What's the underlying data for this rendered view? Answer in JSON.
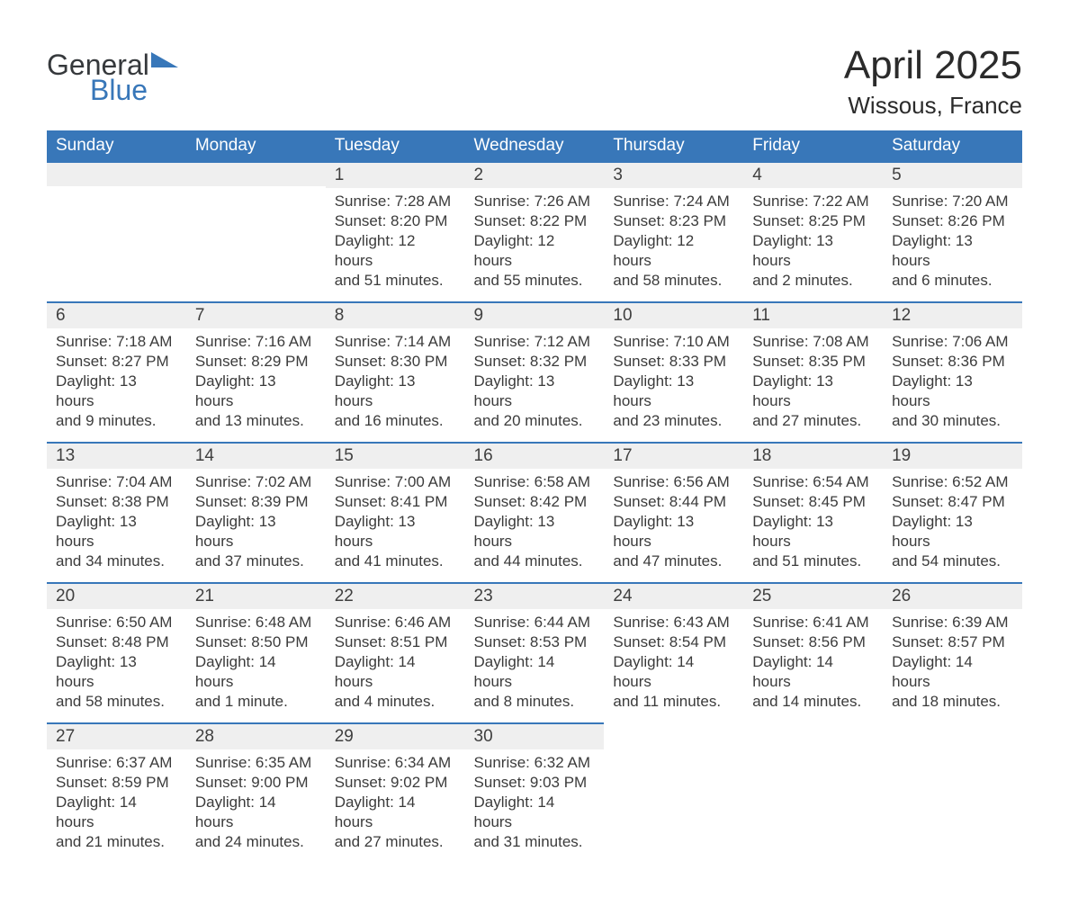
{
  "logo": {
    "text_general": "General",
    "text_blue": "Blue",
    "color_general": "#36393c",
    "color_blue": "#3877b9"
  },
  "header": {
    "month_title": "April 2025",
    "location": "Wissous, France"
  },
  "calendar": {
    "day_headers": [
      "Sunday",
      "Monday",
      "Tuesday",
      "Wednesday",
      "Thursday",
      "Friday",
      "Saturday"
    ],
    "header_bg_color": "#3877b9",
    "header_text_color": "#ffffff",
    "day_bar_bg_color": "#efefef",
    "day_bar_border_color": "#3877b9",
    "text_color": "#3b3b3b",
    "weeks": [
      [
        {
          "day": "",
          "sunrise": "",
          "sunset": "",
          "daylight1": "",
          "daylight2": ""
        },
        {
          "day": "",
          "sunrise": "",
          "sunset": "",
          "daylight1": "",
          "daylight2": ""
        },
        {
          "day": "1",
          "sunrise": "Sunrise: 7:28 AM",
          "sunset": "Sunset: 8:20 PM",
          "daylight1": "Daylight: 12 hours",
          "daylight2": "and 51 minutes."
        },
        {
          "day": "2",
          "sunrise": "Sunrise: 7:26 AM",
          "sunset": "Sunset: 8:22 PM",
          "daylight1": "Daylight: 12 hours",
          "daylight2": "and 55 minutes."
        },
        {
          "day": "3",
          "sunrise": "Sunrise: 7:24 AM",
          "sunset": "Sunset: 8:23 PM",
          "daylight1": "Daylight: 12 hours",
          "daylight2": "and 58 minutes."
        },
        {
          "day": "4",
          "sunrise": "Sunrise: 7:22 AM",
          "sunset": "Sunset: 8:25 PM",
          "daylight1": "Daylight: 13 hours",
          "daylight2": "and 2 minutes."
        },
        {
          "day": "5",
          "sunrise": "Sunrise: 7:20 AM",
          "sunset": "Sunset: 8:26 PM",
          "daylight1": "Daylight: 13 hours",
          "daylight2": "and 6 minutes."
        }
      ],
      [
        {
          "day": "6",
          "sunrise": "Sunrise: 7:18 AM",
          "sunset": "Sunset: 8:27 PM",
          "daylight1": "Daylight: 13 hours",
          "daylight2": "and 9 minutes."
        },
        {
          "day": "7",
          "sunrise": "Sunrise: 7:16 AM",
          "sunset": "Sunset: 8:29 PM",
          "daylight1": "Daylight: 13 hours",
          "daylight2": "and 13 minutes."
        },
        {
          "day": "8",
          "sunrise": "Sunrise: 7:14 AM",
          "sunset": "Sunset: 8:30 PM",
          "daylight1": "Daylight: 13 hours",
          "daylight2": "and 16 minutes."
        },
        {
          "day": "9",
          "sunrise": "Sunrise: 7:12 AM",
          "sunset": "Sunset: 8:32 PM",
          "daylight1": "Daylight: 13 hours",
          "daylight2": "and 20 minutes."
        },
        {
          "day": "10",
          "sunrise": "Sunrise: 7:10 AM",
          "sunset": "Sunset: 8:33 PM",
          "daylight1": "Daylight: 13 hours",
          "daylight2": "and 23 minutes."
        },
        {
          "day": "11",
          "sunrise": "Sunrise: 7:08 AM",
          "sunset": "Sunset: 8:35 PM",
          "daylight1": "Daylight: 13 hours",
          "daylight2": "and 27 minutes."
        },
        {
          "day": "12",
          "sunrise": "Sunrise: 7:06 AM",
          "sunset": "Sunset: 8:36 PM",
          "daylight1": "Daylight: 13 hours",
          "daylight2": "and 30 minutes."
        }
      ],
      [
        {
          "day": "13",
          "sunrise": "Sunrise: 7:04 AM",
          "sunset": "Sunset: 8:38 PM",
          "daylight1": "Daylight: 13 hours",
          "daylight2": "and 34 minutes."
        },
        {
          "day": "14",
          "sunrise": "Sunrise: 7:02 AM",
          "sunset": "Sunset: 8:39 PM",
          "daylight1": "Daylight: 13 hours",
          "daylight2": "and 37 minutes."
        },
        {
          "day": "15",
          "sunrise": "Sunrise: 7:00 AM",
          "sunset": "Sunset: 8:41 PM",
          "daylight1": "Daylight: 13 hours",
          "daylight2": "and 41 minutes."
        },
        {
          "day": "16",
          "sunrise": "Sunrise: 6:58 AM",
          "sunset": "Sunset: 8:42 PM",
          "daylight1": "Daylight: 13 hours",
          "daylight2": "and 44 minutes."
        },
        {
          "day": "17",
          "sunrise": "Sunrise: 6:56 AM",
          "sunset": "Sunset: 8:44 PM",
          "daylight1": "Daylight: 13 hours",
          "daylight2": "and 47 minutes."
        },
        {
          "day": "18",
          "sunrise": "Sunrise: 6:54 AM",
          "sunset": "Sunset: 8:45 PM",
          "daylight1": "Daylight: 13 hours",
          "daylight2": "and 51 minutes."
        },
        {
          "day": "19",
          "sunrise": "Sunrise: 6:52 AM",
          "sunset": "Sunset: 8:47 PM",
          "daylight1": "Daylight: 13 hours",
          "daylight2": "and 54 minutes."
        }
      ],
      [
        {
          "day": "20",
          "sunrise": "Sunrise: 6:50 AM",
          "sunset": "Sunset: 8:48 PM",
          "daylight1": "Daylight: 13 hours",
          "daylight2": "and 58 minutes."
        },
        {
          "day": "21",
          "sunrise": "Sunrise: 6:48 AM",
          "sunset": "Sunset: 8:50 PM",
          "daylight1": "Daylight: 14 hours",
          "daylight2": "and 1 minute."
        },
        {
          "day": "22",
          "sunrise": "Sunrise: 6:46 AM",
          "sunset": "Sunset: 8:51 PM",
          "daylight1": "Daylight: 14 hours",
          "daylight2": "and 4 minutes."
        },
        {
          "day": "23",
          "sunrise": "Sunrise: 6:44 AM",
          "sunset": "Sunset: 8:53 PM",
          "daylight1": "Daylight: 14 hours",
          "daylight2": "and 8 minutes."
        },
        {
          "day": "24",
          "sunrise": "Sunrise: 6:43 AM",
          "sunset": "Sunset: 8:54 PM",
          "daylight1": "Daylight: 14 hours",
          "daylight2": "and 11 minutes."
        },
        {
          "day": "25",
          "sunrise": "Sunrise: 6:41 AM",
          "sunset": "Sunset: 8:56 PM",
          "daylight1": "Daylight: 14 hours",
          "daylight2": "and 14 minutes."
        },
        {
          "day": "26",
          "sunrise": "Sunrise: 6:39 AM",
          "sunset": "Sunset: 8:57 PM",
          "daylight1": "Daylight: 14 hours",
          "daylight2": "and 18 minutes."
        }
      ],
      [
        {
          "day": "27",
          "sunrise": "Sunrise: 6:37 AM",
          "sunset": "Sunset: 8:59 PM",
          "daylight1": "Daylight: 14 hours",
          "daylight2": "and 21 minutes."
        },
        {
          "day": "28",
          "sunrise": "Sunrise: 6:35 AM",
          "sunset": "Sunset: 9:00 PM",
          "daylight1": "Daylight: 14 hours",
          "daylight2": "and 24 minutes."
        },
        {
          "day": "29",
          "sunrise": "Sunrise: 6:34 AM",
          "sunset": "Sunset: 9:02 PM",
          "daylight1": "Daylight: 14 hours",
          "daylight2": "and 27 minutes."
        },
        {
          "day": "30",
          "sunrise": "Sunrise: 6:32 AM",
          "sunset": "Sunset: 9:03 PM",
          "daylight1": "Daylight: 14 hours",
          "daylight2": "and 31 minutes."
        },
        {
          "day": "",
          "sunrise": "",
          "sunset": "",
          "daylight1": "",
          "daylight2": ""
        },
        {
          "day": "",
          "sunrise": "",
          "sunset": "",
          "daylight1": "",
          "daylight2": ""
        },
        {
          "day": "",
          "sunrise": "",
          "sunset": "",
          "daylight1": "",
          "daylight2": ""
        }
      ]
    ]
  }
}
